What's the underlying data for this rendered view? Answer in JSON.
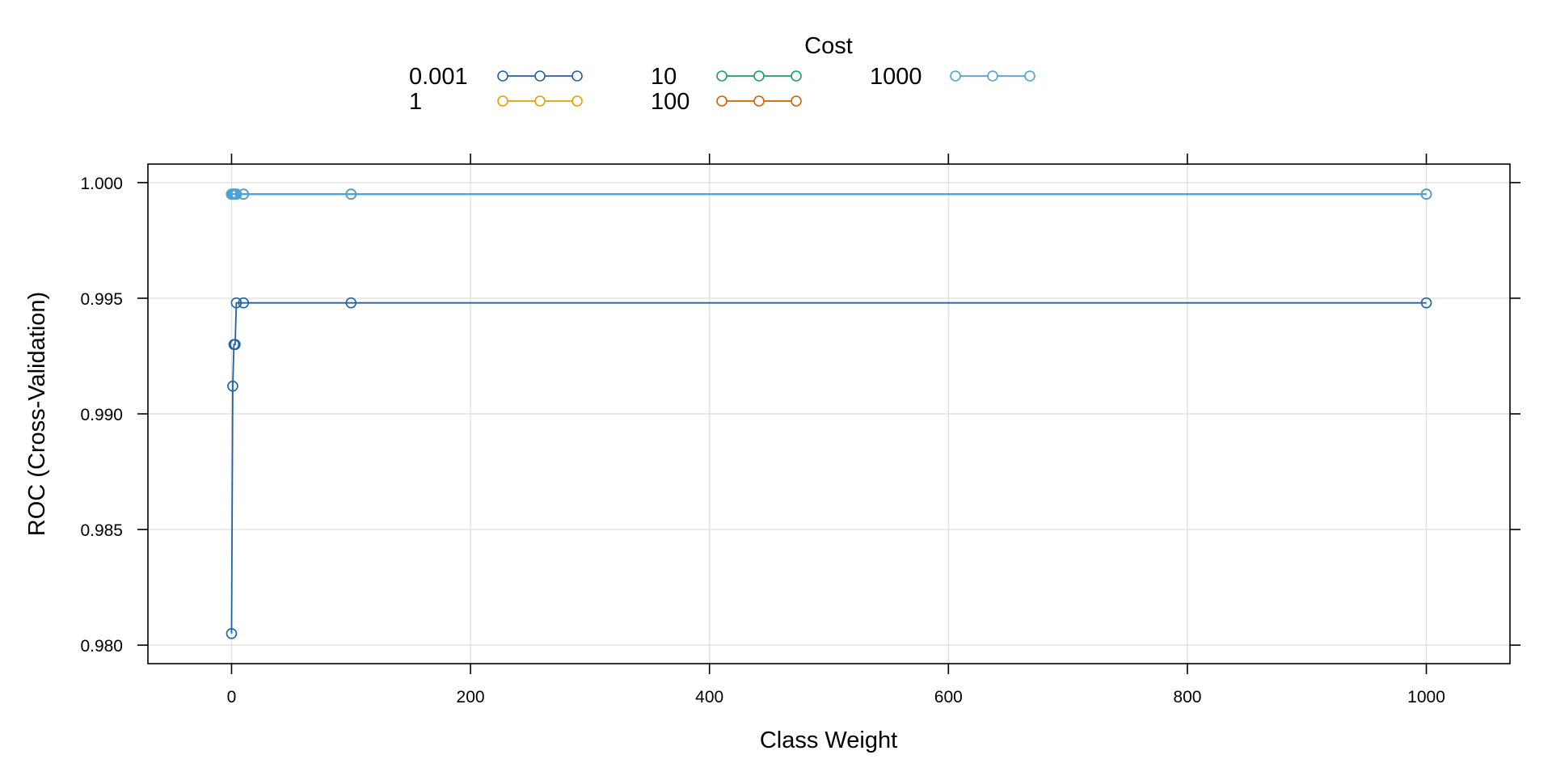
{
  "chart_data": {
    "type": "line",
    "xlabel": "Class Weight",
    "ylabel": "ROC (Cross-Validation)",
    "xlim": [
      -70,
      1070
    ],
    "ylim": [
      0.9792,
      1.0008
    ],
    "x_ticks": [
      0,
      200,
      400,
      600,
      800,
      1000
    ],
    "x_tick_labels": [
      "0",
      "200",
      "400",
      "600",
      "800",
      "1000"
    ],
    "y_ticks": [
      0.98,
      0.985,
      0.99,
      0.995,
      1.0
    ],
    "y_tick_labels": [
      "0.980",
      "0.985",
      "0.990",
      "0.995",
      "1.000"
    ],
    "grid": true,
    "legend": {
      "title": "Cost",
      "placement": "top",
      "entries": [
        "0.001",
        "1",
        "10",
        "100",
        "1000"
      ]
    },
    "series": [
      {
        "name": "0.001",
        "color": "#1f62a8",
        "x": [
          0.001,
          1,
          2,
          3,
          4,
          10,
          100,
          1000
        ],
        "y": [
          0.9805,
          0.9912,
          0.993,
          0.993,
          0.9948,
          0.9948,
          0.9948,
          0.9948
        ]
      },
      {
        "name": "1",
        "color": "#e69f00",
        "x": [
          0.001,
          1,
          2,
          3,
          4,
          10,
          100,
          1000
        ],
        "y": [
          0.9995,
          0.9995,
          0.9995,
          0.9995,
          0.9995,
          0.9995,
          0.9995,
          0.9995
        ]
      },
      {
        "name": "10",
        "color": "#1b9e63",
        "x": [
          0.001,
          1,
          2,
          3,
          4,
          10,
          100,
          1000
        ],
        "y": [
          0.9995,
          0.9995,
          0.9995,
          0.9995,
          0.9995,
          0.9995,
          0.9995,
          0.9995
        ]
      },
      {
        "name": "100",
        "color": "#d55e00",
        "x": [
          0.001,
          1,
          2,
          3,
          4,
          10,
          100,
          1000
        ],
        "y": [
          0.9995,
          0.9995,
          0.9995,
          0.9995,
          0.9995,
          0.9995,
          0.9995,
          0.9995
        ]
      },
      {
        "name": "1000",
        "color": "#4ba3dc",
        "x": [
          0.001,
          1,
          2,
          3,
          4,
          10,
          100,
          1000
        ],
        "y": [
          0.9995,
          0.9995,
          0.9995,
          0.9995,
          0.9995,
          0.9995,
          0.9995,
          0.9995
        ]
      }
    ]
  }
}
